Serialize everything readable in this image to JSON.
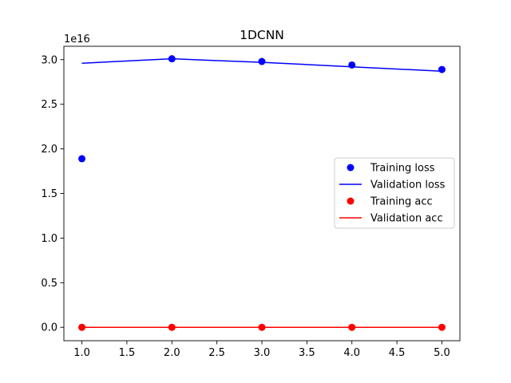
{
  "chart_data": {
    "type": "line",
    "title": "1DCNN",
    "xlabel": "",
    "ylabel": "",
    "y_offset_label": "1e16",
    "xlim": [
      0.8,
      5.2
    ],
    "ylim": [
      -0.15,
      3.15
    ],
    "x_ticks": [
      1.0,
      1.5,
      2.0,
      2.5,
      3.0,
      3.5,
      4.0,
      4.5,
      5.0
    ],
    "x_tick_labels": [
      "1.0",
      "1.5",
      "2.0",
      "2.5",
      "3.0",
      "3.5",
      "4.0",
      "4.5",
      "5.0"
    ],
    "y_ticks": [
      0.0,
      0.5,
      1.0,
      1.5,
      2.0,
      2.5,
      3.0
    ],
    "y_tick_labels": [
      "0.0",
      "0.5",
      "1.0",
      "1.5",
      "2.0",
      "2.5",
      "3.0"
    ],
    "grid": false,
    "legend_position": "center-right",
    "x": [
      1,
      2,
      3,
      4,
      5
    ],
    "series": [
      {
        "name": "Training loss",
        "style": "markers",
        "color": "#0000ff",
        "values": [
          1.89,
          3.01,
          2.98,
          2.94,
          2.89
        ]
      },
      {
        "name": "Validation loss",
        "style": "line",
        "color": "#0000ff",
        "values": [
          2.96,
          3.01,
          2.97,
          2.92,
          2.87
        ]
      },
      {
        "name": "Training acc",
        "style": "markers",
        "color": "#ff0000",
        "values": [
          0.0,
          0.0,
          0.0,
          0.0,
          0.0
        ]
      },
      {
        "name": "Validation acc",
        "style": "line",
        "color": "#ff0000",
        "values": [
          0.0,
          0.0,
          0.0,
          0.0,
          0.0
        ]
      }
    ]
  }
}
